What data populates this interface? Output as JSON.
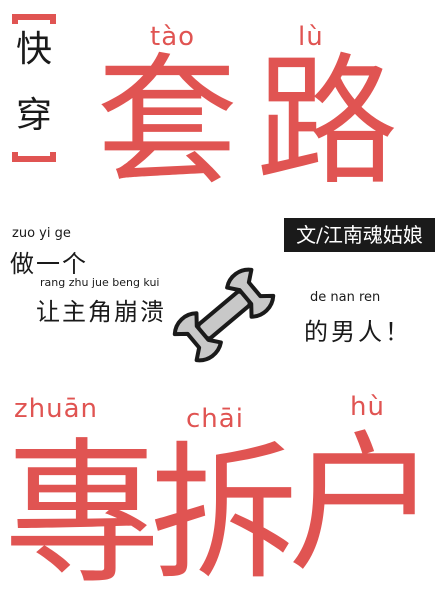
{
  "tag": {
    "char_top": "快",
    "char_bottom": "穿"
  },
  "title_top": {
    "pinyin_1": "tào",
    "pinyin_2": "lù",
    "char_1": "套",
    "char_2": "路"
  },
  "author": "文/江南魂姑娘",
  "middle": {
    "line1_pinyin": "zuo yi ge",
    "line1_text": "做一个",
    "line2_pinyin": "rang zhu jue beng kui",
    "line2_text": "让主角崩溃",
    "line3_pinyin": "de nan ren",
    "line3_text": "的男人！"
  },
  "title_bottom": {
    "pinyin_1": "zhuān",
    "pinyin_2": "chāi",
    "pinyin_3": "hù",
    "char_1": "專",
    "char_2": "拆",
    "char_3": "户"
  },
  "colors": {
    "accent": "#e05452",
    "ink": "#1a1a1a",
    "wrench": "#c8c8c8"
  },
  "icons": {
    "center": "wrench-icon"
  }
}
